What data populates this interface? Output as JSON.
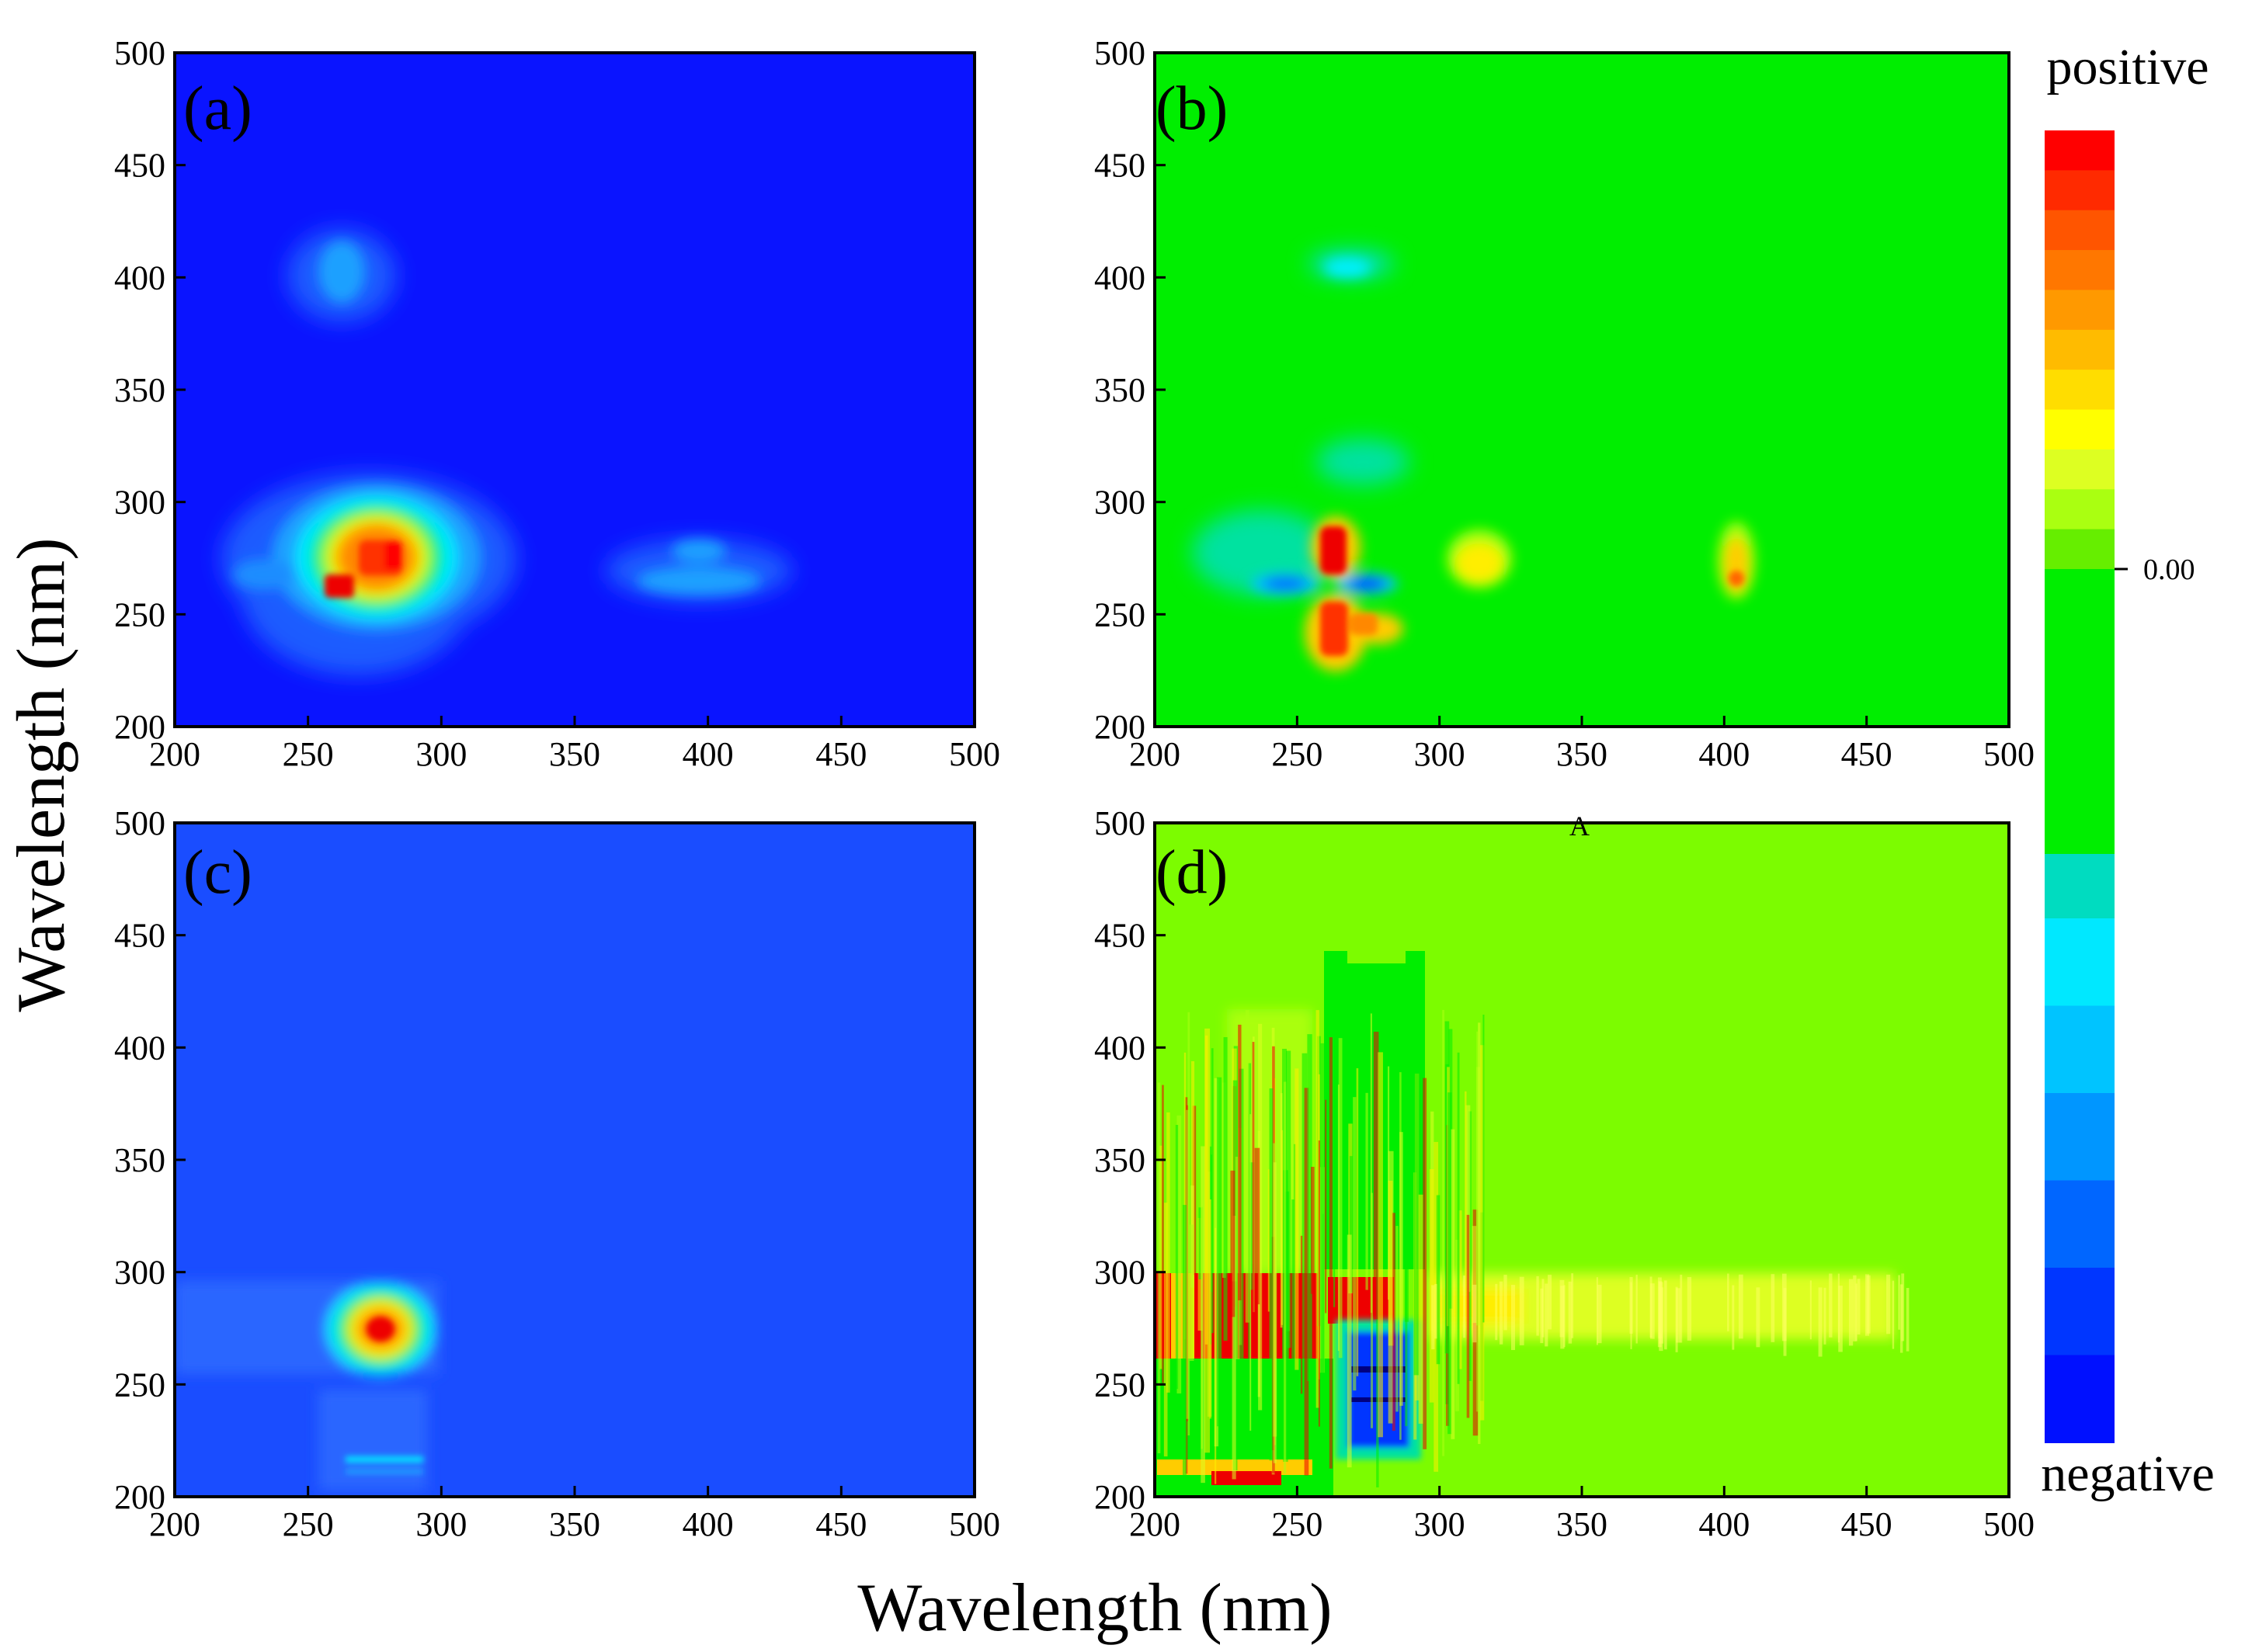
{
  "figure": {
    "xlabel": "Wavelength (nm)",
    "ylabel": "Wavelength (nm)",
    "stray_label": "A"
  },
  "colors": {
    "deep_blue": "#0a14ff",
    "blue": "#1a4dff",
    "cyan": "#00f0ff",
    "green": "#00ee00",
    "yellowgreen": "#7cfc00",
    "yellow": "#ffff00",
    "orange": "#ff8800",
    "red": "#ee0000"
  },
  "colorbar": {
    "top_label": "positive",
    "bottom_label": "negative",
    "zero_label": "0.00",
    "stops": [
      "#ff0000",
      "#ff2a00",
      "#ff5500",
      "#ff7700",
      "#ff9900",
      "#ffbb00",
      "#ffdd00",
      "#ffff00",
      "#ddff22",
      "#aaff11",
      "#66ee00",
      "#00ee00",
      "#00e833",
      "#00e27a",
      "#00dcc0",
      "#00e8ff",
      "#00c4ff",
      "#0096ff",
      "#0066ff",
      "#0036ff",
      "#0010ff"
    ]
  },
  "chart_data": [
    {
      "type": "heatmap",
      "panel": "(a)",
      "xlim": [
        200,
        500
      ],
      "ylim": [
        200,
        500
      ],
      "xticks": [
        "200",
        "250",
        "300",
        "350",
        "400",
        "450",
        "500"
      ],
      "yticks": [
        "200",
        "250",
        "300",
        "350",
        "400",
        "450",
        "500"
      ],
      "background": "#0a14ff",
      "features": [
        {
          "x": 275,
          "y": 275,
          "peak": "red",
          "note": "main peak near Ex/Em 270–280 nm"
        },
        {
          "x": 262,
          "y": 263,
          "peak": "red"
        },
        {
          "x": 270,
          "y": 400,
          "peak": "cyan"
        },
        {
          "x": 400,
          "y": 268,
          "peak": "cyan"
        }
      ]
    },
    {
      "type": "heatmap",
      "panel": "(b)",
      "xlim": [
        200,
        500
      ],
      "ylim": [
        200,
        500
      ],
      "xticks": [
        "200",
        "250",
        "300",
        "350",
        "400",
        "450",
        "500"
      ],
      "yticks": [
        "200",
        "250",
        "300",
        "350",
        "400",
        "450",
        "500"
      ],
      "background": "#00ee00",
      "features": [
        {
          "x": 262,
          "y": 278,
          "peak": "red"
        },
        {
          "x": 262,
          "y": 245,
          "peak": "red"
        },
        {
          "x": 250,
          "y": 263,
          "peak": "blue"
        },
        {
          "x": 280,
          "y": 263,
          "peak": "blue"
        },
        {
          "x": 315,
          "y": 270,
          "peak": "yellow"
        },
        {
          "x": 403,
          "y": 272,
          "peak": "yellow"
        },
        {
          "x": 270,
          "y": 403,
          "peak": "cyan"
        }
      ]
    },
    {
      "type": "heatmap",
      "panel": "(c)",
      "xlim": [
        200,
        500
      ],
      "ylim": [
        200,
        500
      ],
      "xticks": [
        "200",
        "250",
        "300",
        "350",
        "400",
        "450",
        "500"
      ],
      "yticks": [
        "200",
        "250",
        "300",
        "350",
        "400",
        "450",
        "500"
      ],
      "background": "#1a4dff",
      "features": [
        {
          "x": 275,
          "y": 275,
          "peak": "red"
        }
      ]
    },
    {
      "type": "heatmap",
      "panel": "(d)",
      "xlim": [
        200,
        500
      ],
      "ylim": [
        200,
        500
      ],
      "xticks": [
        "200",
        "250",
        "300",
        "350",
        "400",
        "450",
        "500"
      ],
      "yticks": [
        "200",
        "250",
        "300",
        "350",
        "400",
        "450",
        "500"
      ],
      "background": "#7cfc00",
      "features": [
        {
          "x": 230,
          "y": 278,
          "peak": "red",
          "note": "band 200–300 nm"
        },
        {
          "x": 278,
          "y": 350,
          "peak": "green"
        },
        {
          "x": 278,
          "y": 245,
          "peak": "blue"
        },
        {
          "x": 350,
          "y": 275,
          "peak": "yellow",
          "note": "band 300–470 nm"
        }
      ]
    }
  ]
}
